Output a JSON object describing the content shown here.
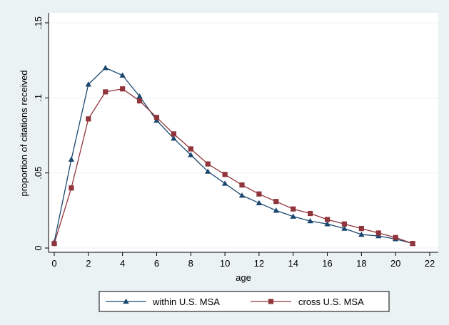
{
  "chart_data": {
    "type": "line",
    "title": "",
    "xlabel": "age",
    "ylabel": "proportion of citations received",
    "xlim": [
      0,
      22
    ],
    "ylim": [
      0,
      0.15
    ],
    "xticks": [
      0,
      2,
      4,
      6,
      8,
      10,
      12,
      14,
      16,
      18,
      20,
      22
    ],
    "xtick_labels": [
      "0",
      "2",
      "4",
      "6",
      "8",
      "10",
      "12",
      "14",
      "16",
      "18",
      "20",
      "22"
    ],
    "yticks": [
      0,
      0.05,
      0.1,
      0.15
    ],
    "ytick_labels": [
      "0",
      ".05",
      ".1",
      ".15"
    ],
    "grid": true,
    "legend_position": "bottom",
    "x": [
      0,
      1,
      2,
      3,
      4,
      5,
      6,
      7,
      8,
      9,
      10,
      11,
      12,
      13,
      14,
      15,
      16,
      17,
      18,
      19,
      20,
      21
    ],
    "series": [
      {
        "name": "within U.S. MSA",
        "color": "#1a476f",
        "marker": "triangle",
        "values": [
          0.004,
          0.059,
          0.109,
          0.12,
          0.115,
          0.101,
          0.085,
          0.073,
          0.062,
          0.051,
          0.043,
          0.035,
          0.03,
          0.025,
          0.021,
          0.018,
          0.016,
          0.013,
          0.009,
          0.008,
          0.006,
          0.003
        ]
      },
      {
        "name": "cross U.S. MSA",
        "color": "#90353b",
        "marker": "square",
        "values": [
          0.003,
          0.04,
          0.086,
          0.104,
          0.106,
          0.098,
          0.087,
          0.076,
          0.066,
          0.056,
          0.049,
          0.042,
          0.036,
          0.031,
          0.026,
          0.023,
          0.019,
          0.016,
          0.013,
          0.01,
          0.007,
          0.003
        ]
      }
    ]
  }
}
